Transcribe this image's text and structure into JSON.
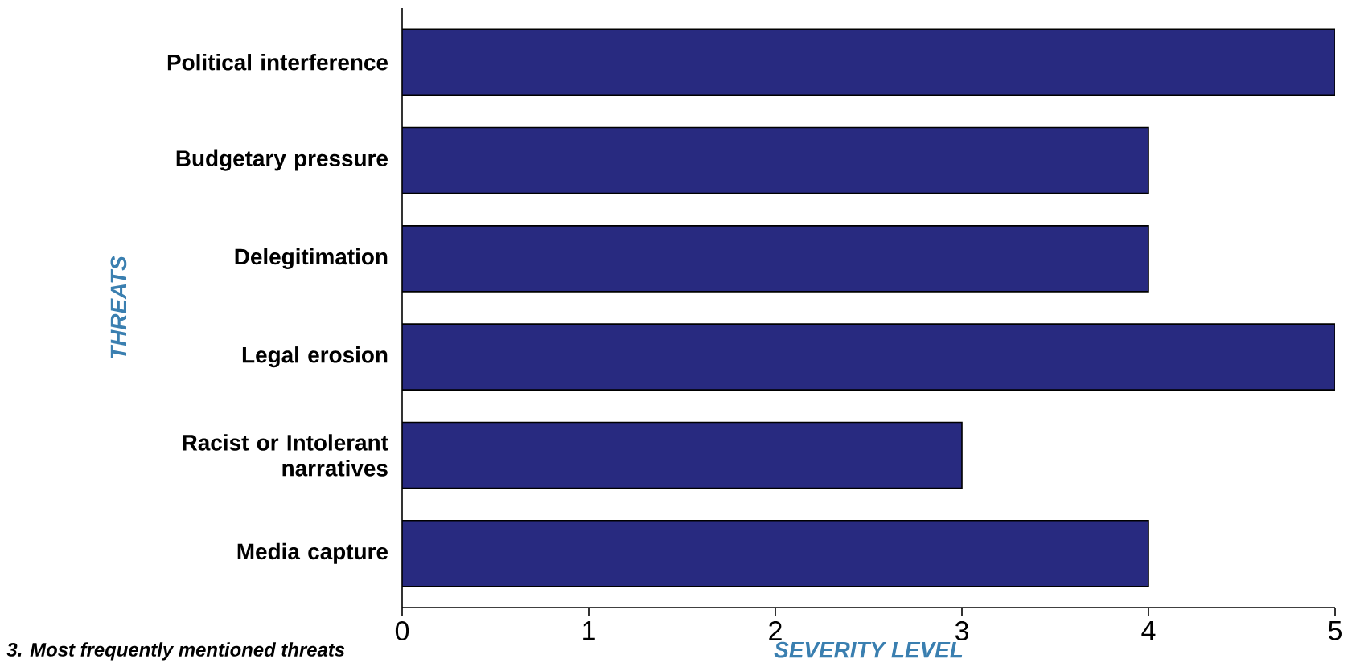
{
  "chart_data": {
    "type": "bar",
    "orientation": "horizontal",
    "ylabel": "THREATS",
    "xlabel": "SEVERITY LEVEL",
    "categories": [
      "Political interference",
      "Budgetary pressure",
      "Delegitimation",
      "Legal erosion",
      "Racist or Intolerant narratives",
      "Media capture"
    ],
    "values": [
      5,
      4,
      4,
      5,
      3,
      4
    ],
    "color": "#282a80",
    "xlim": [
      0,
      5
    ],
    "xticks": [
      0,
      1,
      2,
      3,
      4,
      5
    ],
    "grid": false,
    "annotations": [
      "3. Most frequently mentioned threats"
    ]
  }
}
